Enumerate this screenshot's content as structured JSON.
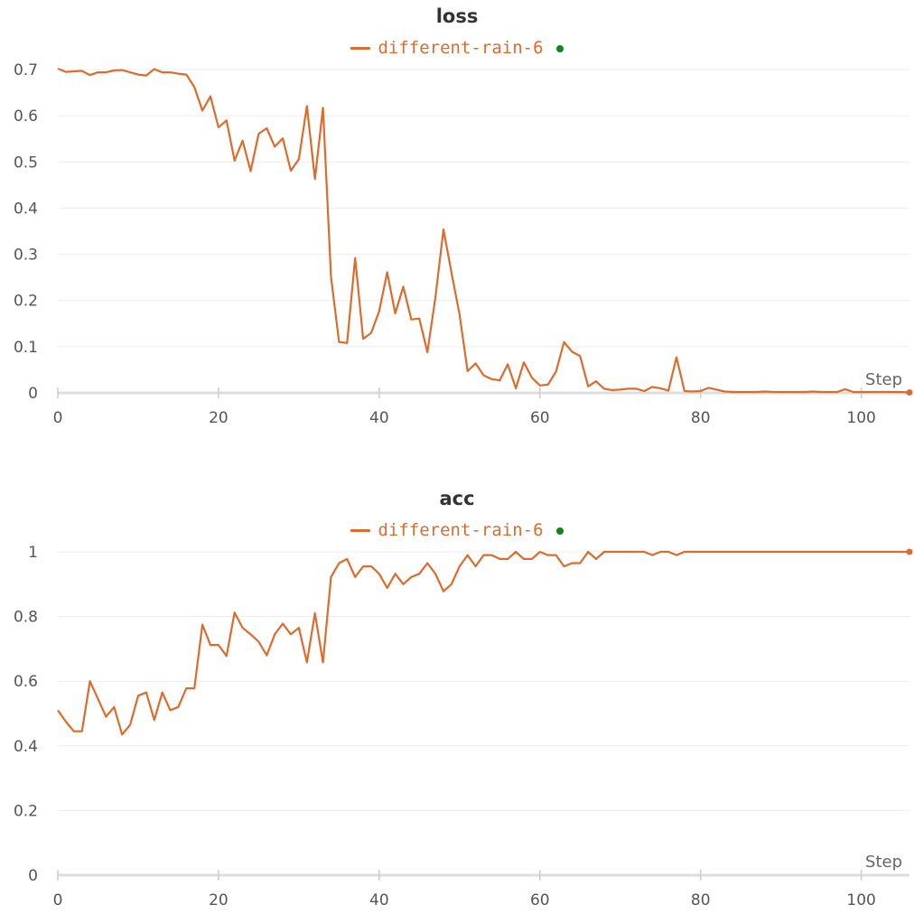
{
  "chart_data": [
    {
      "type": "line",
      "title": "loss",
      "xlabel": "Step",
      "ylabel": "",
      "xlim": [
        0,
        106
      ],
      "ylim": [
        0,
        0.7
      ],
      "x_ticks": [
        0,
        20,
        40,
        60,
        80,
        100
      ],
      "y_ticks": [
        0,
        0.1,
        0.2,
        0.3,
        0.4,
        0.5,
        0.6,
        0.7
      ],
      "y_tick_labels": [
        "0",
        "0.1",
        "0.2",
        "0.3",
        "0.4",
        "0.5",
        "0.6",
        "0.7"
      ],
      "grid": true,
      "legend_position": "top-center",
      "series": [
        {
          "name": "different-rain-6",
          "color": "#dd6b2c",
          "x": [
            0,
            1,
            2,
            3,
            4,
            5,
            6,
            7,
            8,
            9,
            10,
            11,
            12,
            13,
            14,
            15,
            16,
            17,
            18,
            19,
            20,
            21,
            22,
            23,
            24,
            25,
            26,
            27,
            28,
            29,
            30,
            31,
            32,
            33,
            34,
            35,
            36,
            37,
            38,
            39,
            40,
            41,
            42,
            43,
            44,
            45,
            46,
            47,
            48,
            49,
            50,
            51,
            52,
            53,
            54,
            55,
            56,
            57,
            58,
            59,
            60,
            61,
            62,
            63,
            64,
            65,
            66,
            67,
            68,
            69,
            70,
            71,
            72,
            73,
            74,
            75,
            76,
            77,
            78,
            79,
            80,
            81,
            82,
            83,
            84,
            85,
            86,
            87,
            88,
            89,
            90,
            91,
            92,
            93,
            94,
            95,
            96,
            97,
            98,
            99,
            100,
            101,
            102,
            103,
            104,
            105,
            106
          ],
          "values": [
            0.702,
            0.695,
            0.696,
            0.697,
            0.688,
            0.694,
            0.694,
            0.698,
            0.699,
            0.694,
            0.689,
            0.687,
            0.701,
            0.694,
            0.694,
            0.691,
            0.689,
            0.662,
            0.611,
            0.642,
            0.575,
            0.59,
            0.503,
            0.546,
            0.48,
            0.561,
            0.573,
            0.533,
            0.551,
            0.481,
            0.506,
            0.621,
            0.463,
            0.617,
            0.251,
            0.11,
            0.108,
            0.292,
            0.117,
            0.13,
            0.177,
            0.261,
            0.172,
            0.23,
            0.159,
            0.161,
            0.088,
            0.207,
            0.354,
            0.26,
            0.17,
            0.047,
            0.064,
            0.038,
            0.03,
            0.027,
            0.062,
            0.01,
            0.066,
            0.033,
            0.016,
            0.018,
            0.046,
            0.11,
            0.089,
            0.08,
            0.014,
            0.025,
            0.009,
            0.006,
            0.007,
            0.009,
            0.009,
            0.004,
            0.013,
            0.01,
            0.005,
            0.077,
            0.004,
            0.003,
            0.004,
            0.011,
            0.007,
            0.003,
            0.002,
            0.002,
            0.002,
            0.002,
            0.003,
            0.002,
            0.002,
            0.002,
            0.002,
            0.002,
            0.003,
            0.002,
            0.002,
            0.002,
            0.008,
            0.002,
            0.002,
            0.002,
            0.002,
            0.002,
            0.002,
            0.002,
            0.001
          ]
        }
      ]
    },
    {
      "type": "line",
      "title": "acc",
      "xlabel": "Step",
      "ylabel": "",
      "xlim": [
        0,
        106
      ],
      "ylim": [
        0,
        1
      ],
      "x_ticks": [
        0,
        20,
        40,
        60,
        80,
        100
      ],
      "y_ticks": [
        0,
        0.2,
        0.4,
        0.6,
        0.8,
        1
      ],
      "y_tick_labels": [
        "0",
        "0.2",
        "0.4",
        "0.6",
        "0.8",
        "1"
      ],
      "grid": true,
      "legend_position": "top-center",
      "series": [
        {
          "name": "different-rain-6",
          "color": "#dd6b2c",
          "x": [
            0,
            1,
            2,
            3,
            4,
            5,
            6,
            7,
            8,
            9,
            10,
            11,
            12,
            13,
            14,
            15,
            16,
            17,
            18,
            19,
            20,
            21,
            22,
            23,
            24,
            25,
            26,
            27,
            28,
            29,
            30,
            31,
            32,
            33,
            34,
            35,
            36,
            37,
            38,
            39,
            40,
            41,
            42,
            43,
            44,
            45,
            46,
            47,
            48,
            49,
            50,
            51,
            52,
            53,
            54,
            55,
            56,
            57,
            58,
            59,
            60,
            61,
            62,
            63,
            64,
            65,
            66,
            67,
            68,
            69,
            70,
            71,
            72,
            73,
            74,
            75,
            76,
            77,
            78,
            79,
            80,
            81,
            82,
            83,
            84,
            85,
            86,
            87,
            88,
            89,
            90,
            91,
            92,
            93,
            94,
            95,
            96,
            97,
            98,
            99,
            100,
            101,
            102,
            103,
            104,
            105,
            106
          ],
          "values": [
            0.51,
            0.475,
            0.445,
            0.445,
            0.6,
            0.545,
            0.49,
            0.52,
            0.435,
            0.465,
            0.555,
            0.565,
            0.48,
            0.565,
            0.51,
            0.52,
            0.578,
            0.578,
            0.775,
            0.712,
            0.712,
            0.678,
            0.812,
            0.765,
            0.745,
            0.722,
            0.68,
            0.745,
            0.778,
            0.745,
            0.765,
            0.658,
            0.81,
            0.658,
            0.922,
            0.965,
            0.978,
            0.922,
            0.955,
            0.955,
            0.932,
            0.888,
            0.932,
            0.9,
            0.922,
            0.932,
            0.965,
            0.932,
            0.878,
            0.9,
            0.955,
            0.99,
            0.955,
            0.99,
            0.99,
            0.978,
            0.978,
            1.0,
            0.978,
            0.978,
            1.0,
            0.99,
            0.99,
            0.955,
            0.965,
            0.965,
            1.0,
            0.978,
            1.0,
            1.0,
            1.0,
            1.0,
            1.0,
            1.0,
            0.99,
            1.0,
            1.0,
            0.99,
            1.0,
            1.0,
            1.0,
            1.0,
            1.0,
            1.0,
            1.0,
            1.0,
            1.0,
            1.0,
            1.0,
            1.0,
            1.0,
            1.0,
            1.0,
            1.0,
            1.0,
            1.0,
            1.0,
            1.0,
            1.0,
            1.0,
            1.0,
            1.0,
            1.0,
            1.0,
            1.0,
            1.0,
            1.0
          ]
        }
      ]
    }
  ],
  "colors": {
    "series": "#dd6b2c",
    "legend_dot": "#0a8a1a",
    "grid": "#ececec",
    "axis": "#dddddd",
    "tick_text": "#555555"
  }
}
